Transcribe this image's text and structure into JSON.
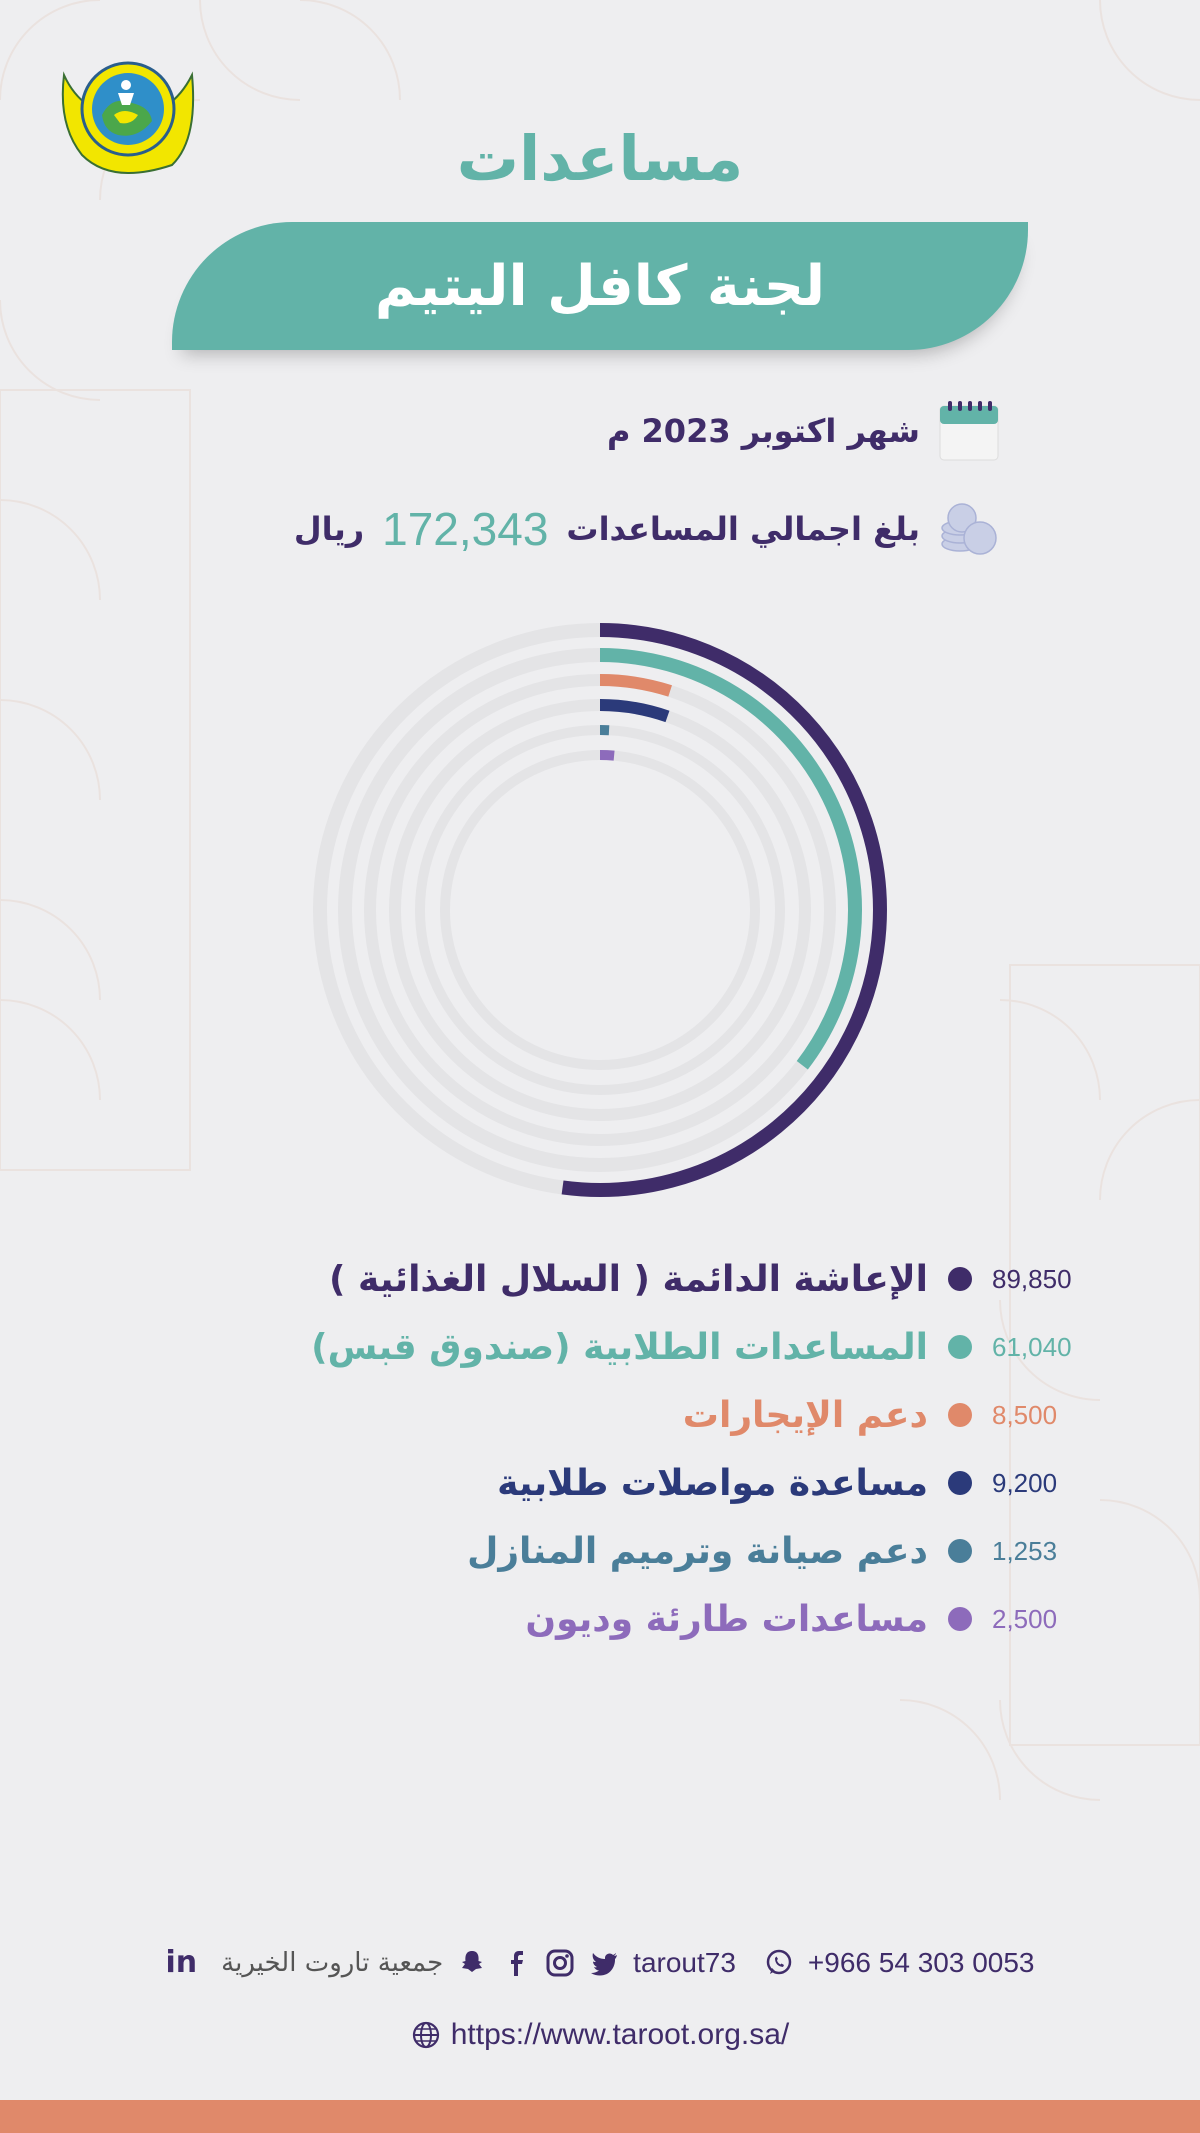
{
  "header": {
    "title": "مساعدات",
    "subtitle": "لجنة كافل اليتيم"
  },
  "summary": {
    "month": "شهر اكتوبر 2023 م",
    "total_label": "بلغ اجمالي المساعدات",
    "total_value": "172,343",
    "total_unit": "ريال"
  },
  "colors": {
    "teal": "#62b3a8",
    "purple": "#3f2c69",
    "orange": "#e0896a",
    "navy": "#2b3a7a",
    "steel": "#4a7e99",
    "lavender": "#8d6bbb",
    "track": "#e4e4e6"
  },
  "chart_data": {
    "type": "radial-bar",
    "title": "",
    "total": 172343,
    "series": [
      {
        "name": "الإعاشة الدائمة ( السلال الغذائية )",
        "value": 89850,
        "display": "89,850",
        "color": "#3f2c69"
      },
      {
        "name": "المساعدات الطلابية (صندوق قبس)",
        "value": 61040,
        "display": "61,040",
        "color": "#62b3a8"
      },
      {
        "name": "دعم الإيجارات",
        "value": 8500,
        "display": "8,500",
        "color": "#e0896a"
      },
      {
        "name": "مساعدة مواصلات طلابية",
        "value": 9200,
        "display": "9,200",
        "color": "#2b3a7a"
      },
      {
        "name": "دعم صيانة وترميم المنازل",
        "value": 1253,
        "display": "1,253",
        "color": "#4a7e99"
      },
      {
        "name": "مساعدات طارئة وديون",
        "value": 2500,
        "display": "2,500",
        "color": "#8d6bbb"
      }
    ],
    "legend_position": "bottom"
  },
  "footer": {
    "organization": "جمعية تاروت الخيرية",
    "linkedin": "in",
    "handle": "tarout73",
    "phone": "+966 54 303 0053",
    "website": "https://www.taroot.org.sa/"
  }
}
